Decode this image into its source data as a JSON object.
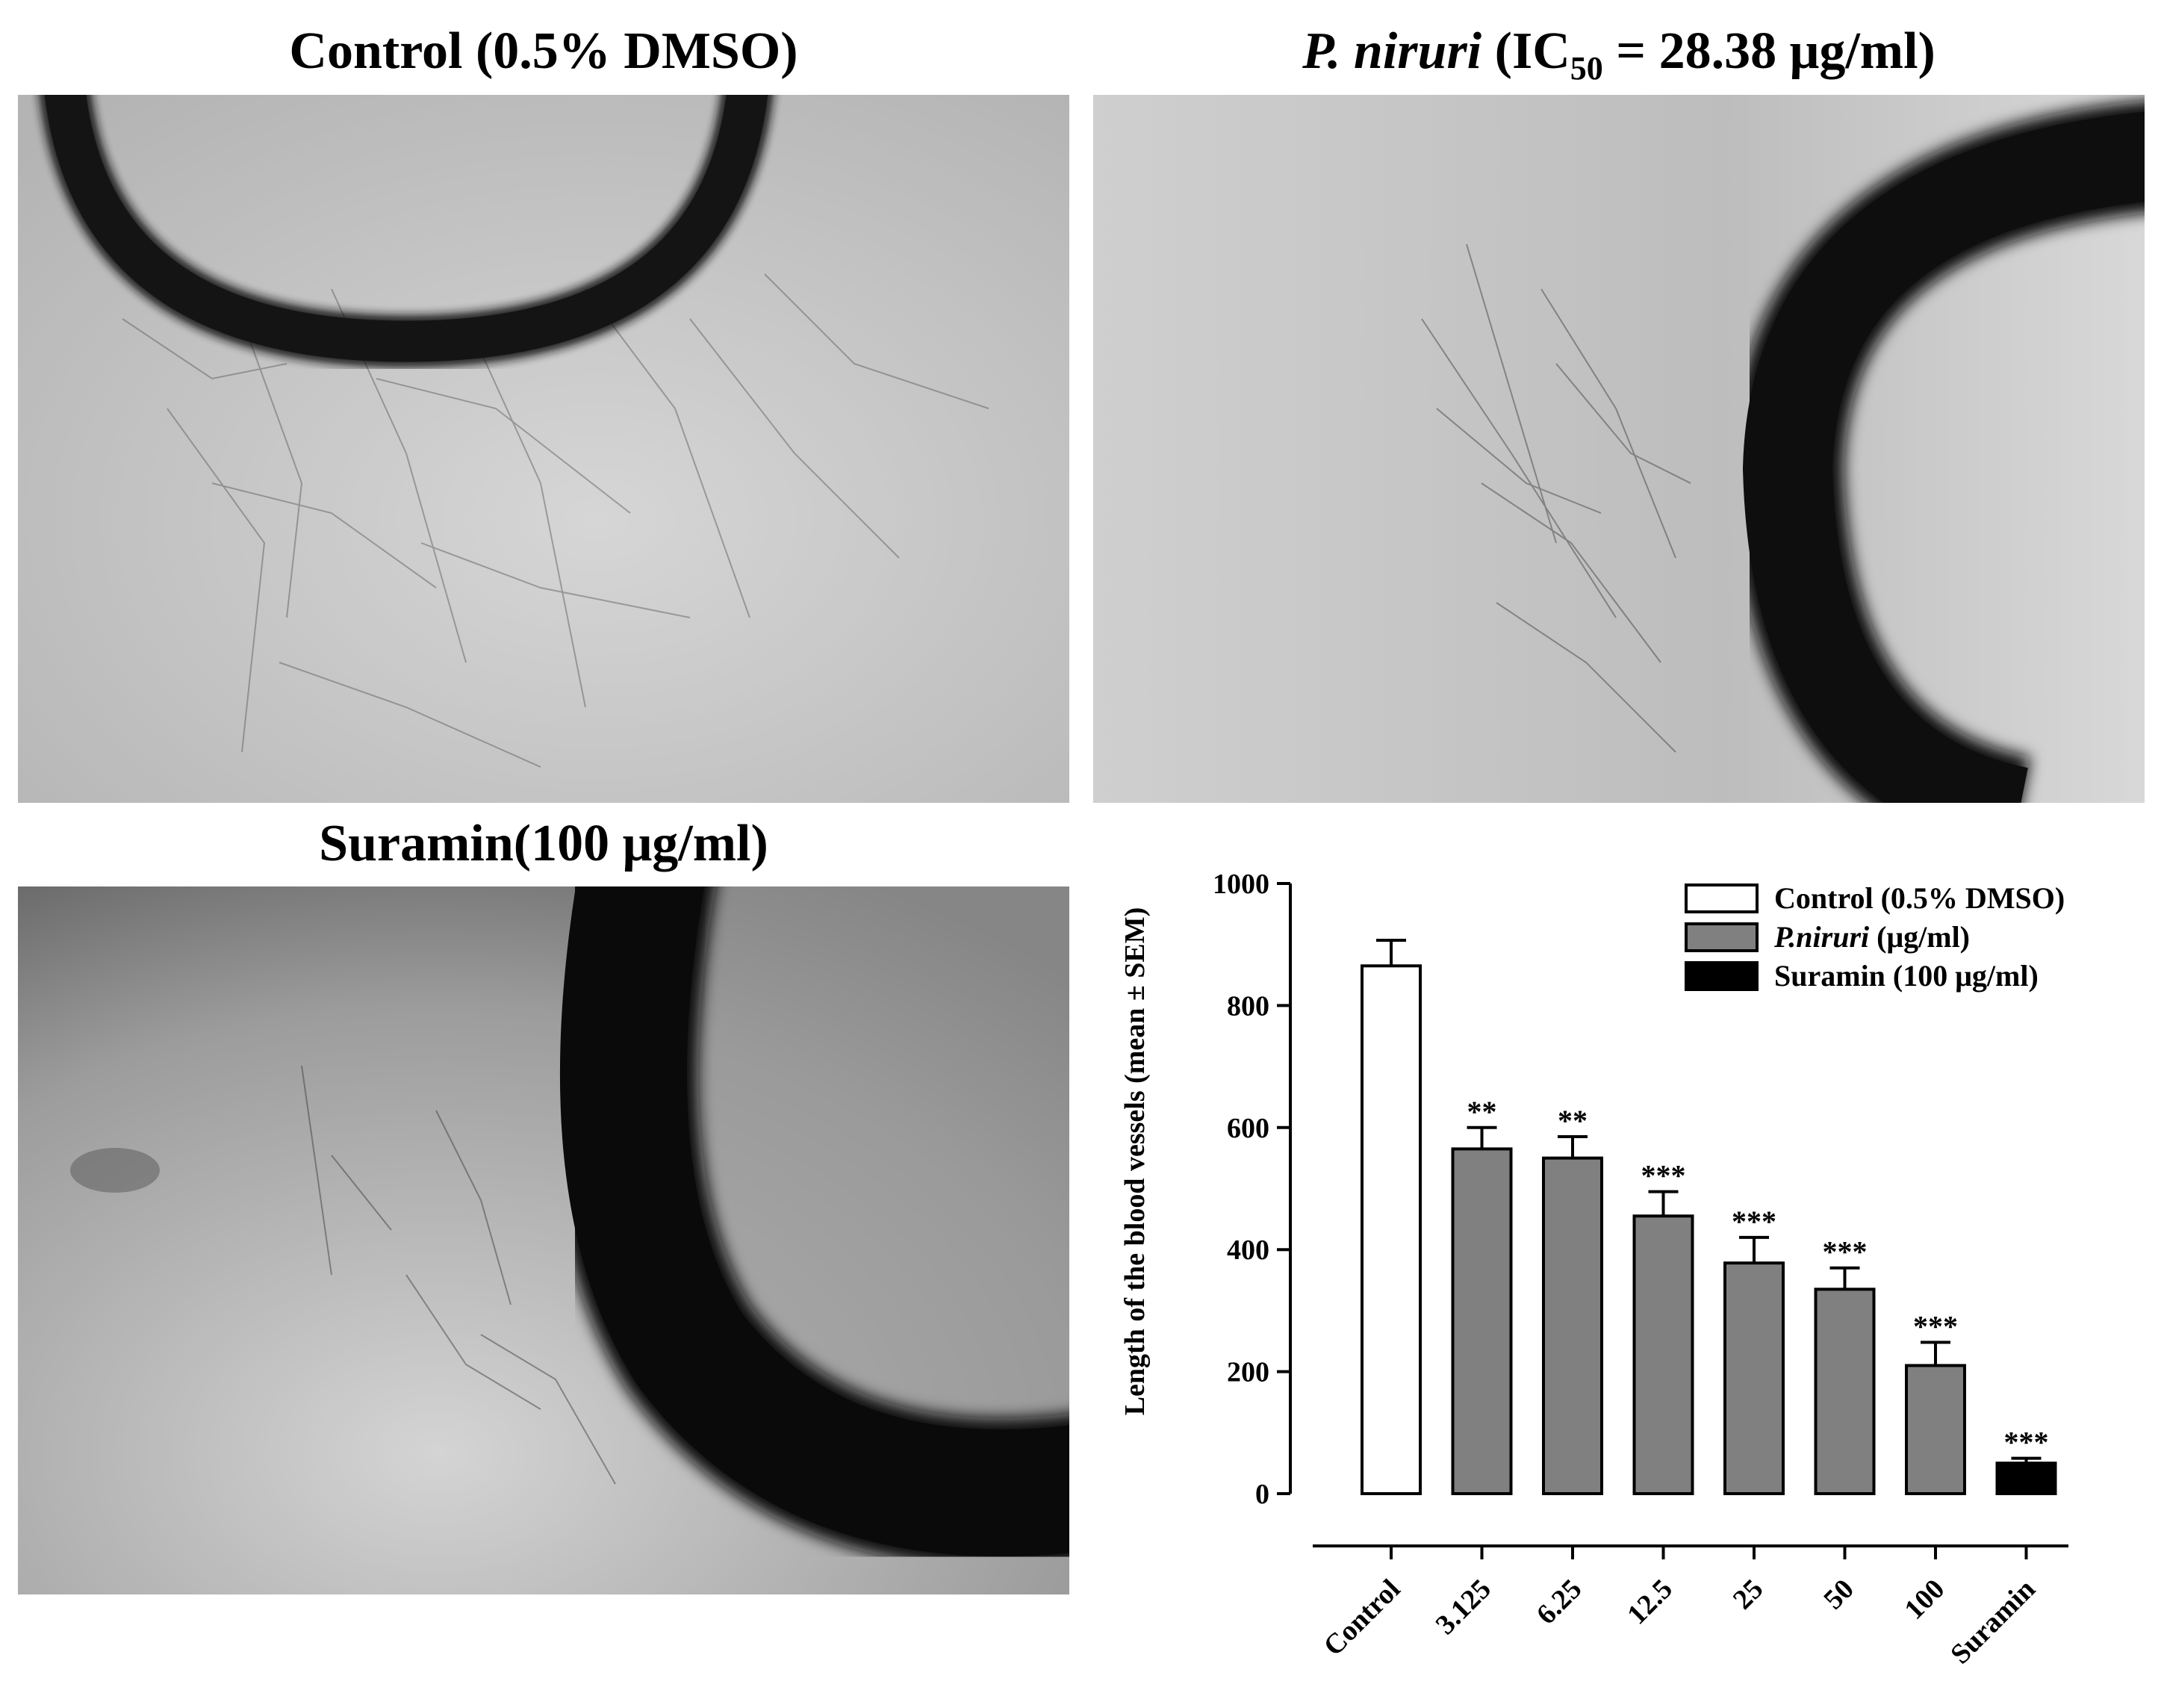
{
  "panels": {
    "control": {
      "title": "Control (0.5% DMSO)"
    },
    "pniruri": {
      "title_italic": "P. niruri",
      "title_open": " (IC",
      "title_sub": "50",
      "title_rest": " = 28.38 μg/ml)"
    },
    "suramin": {
      "title": "Suramin(100 μg/ml)"
    }
  },
  "colors": {
    "control_bar": "#ffffff",
    "pniruri_bar": "#808080",
    "suramin_bar": "#000000",
    "ring": "#111111"
  },
  "chart_data": {
    "type": "bar",
    "title": "",
    "xlabel": "",
    "ylabel": "Length of the blood vessels (mean    ± SEM)",
    "ylim": [
      0,
      1000
    ],
    "yticks": [
      0,
      200,
      400,
      600,
      800,
      1000
    ],
    "categories": [
      "Control",
      "3.125",
      "6.25",
      "12.5",
      "25",
      "50",
      "100",
      "Suramin"
    ],
    "values": [
      865,
      565,
      550,
      455,
      378,
      335,
      210,
      50
    ],
    "errors": [
      42,
      35,
      35,
      40,
      42,
      35,
      38,
      8
    ],
    "significance": [
      "",
      "**",
      "**",
      "***",
      "***",
      "***",
      "***",
      "***"
    ],
    "groups": [
      "control",
      "pniruri",
      "pniruri",
      "pniruri",
      "pniruri",
      "pniruri",
      "pniruri",
      "suramin"
    ],
    "legend": [
      {
        "key": "control",
        "label": "Control (0.5% DMSO)"
      },
      {
        "key": "pniruri",
        "label_italic": "P.niruri",
        "label_rest": " (μg/ml)"
      },
      {
        "key": "suramin",
        "label": "Suramin (100 μg/ml)"
      }
    ],
    "legend_position": "top-right"
  }
}
